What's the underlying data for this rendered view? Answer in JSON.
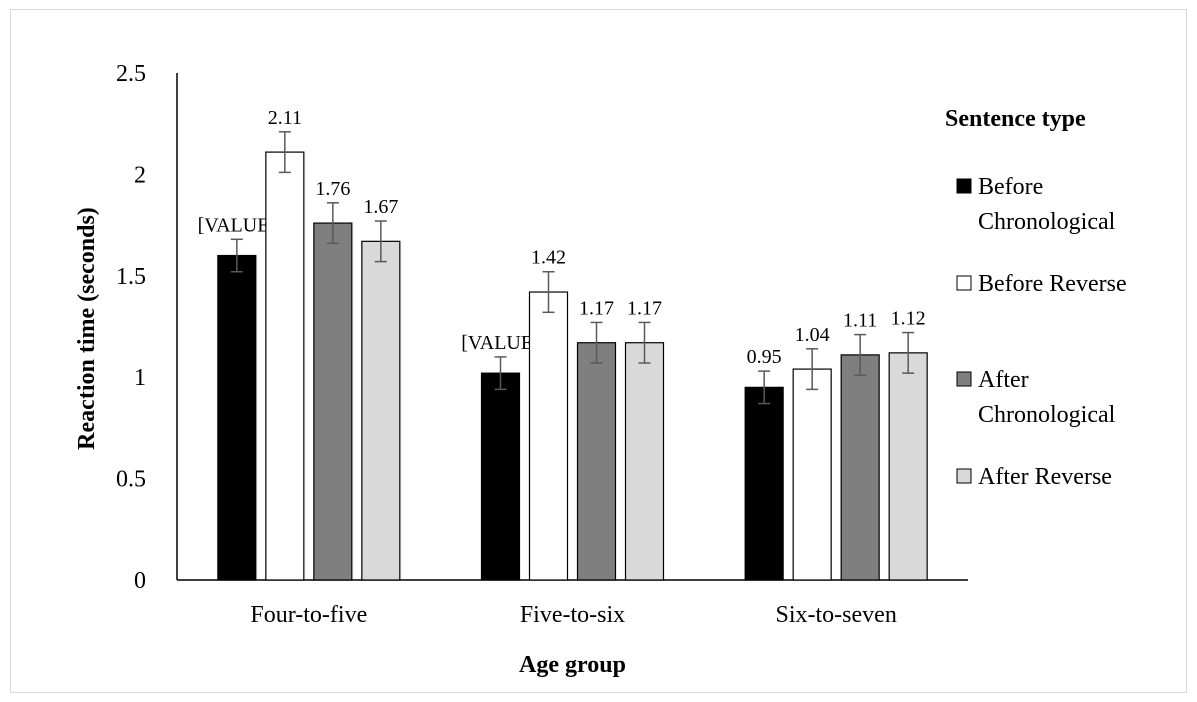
{
  "chart_data": {
    "type": "bar",
    "xlabel": "Age group",
    "ylabel": "Reaction time  (seconds)",
    "categories": [
      "Four-to-five",
      "Five-to-six",
      "Six-to-seven"
    ],
    "ylim": [
      0,
      2.5
    ],
    "yticks": [
      "0",
      "0.5",
      "1",
      "1.5",
      "2",
      "2.5"
    ],
    "grid": false,
    "legend_title": "Sentence type",
    "legend_position": "right",
    "series": [
      {
        "name": "Before Chronological",
        "legend_lines": [
          "Before",
          "Chronological"
        ],
        "color": "#000000",
        "values": [
          1.6,
          1.02,
          0.95
        ],
        "labels": [
          "[VALUE]",
          "[VALUE]",
          "0.95"
        ],
        "errors": [
          0.08,
          0.08,
          0.08
        ]
      },
      {
        "name": "Before Reverse",
        "legend_lines": [
          "Before Reverse"
        ],
        "color": "#ffffff",
        "values": [
          2.11,
          1.42,
          1.04
        ],
        "labels": [
          "2.11",
          "1.42",
          "1.04"
        ],
        "errors": [
          0.1,
          0.1,
          0.1
        ]
      },
      {
        "name": "After Chronological",
        "legend_lines": [
          "After",
          "Chronological"
        ],
        "color": "#7f7f7f",
        "values": [
          1.76,
          1.17,
          1.11
        ],
        "labels": [
          "1.76",
          "1.17",
          "1.11"
        ],
        "errors": [
          0.1,
          0.1,
          0.1
        ]
      },
      {
        "name": "After Reverse",
        "legend_lines": [
          "After Reverse"
        ],
        "color": "#d9d9d9",
        "values": [
          1.67,
          1.17,
          1.12
        ],
        "labels": [
          "1.67",
          "1.17",
          "1.12"
        ],
        "errors": [
          0.1,
          0.1,
          0.1
        ]
      }
    ]
  }
}
